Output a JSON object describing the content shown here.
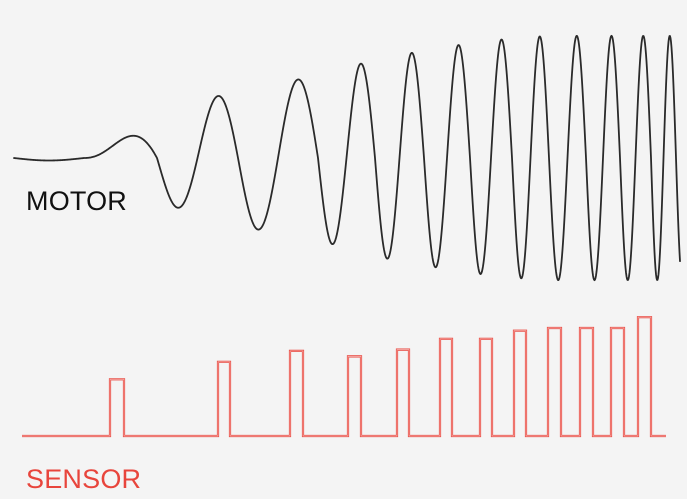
{
  "motor": {
    "label": "MOTOR",
    "color": "#2a2a2a",
    "waveform": "sine-chirp"
  },
  "sensor": {
    "label": "SENSOR",
    "color": "#e8453c",
    "waveform": "pulse-train",
    "pulses": [
      {
        "level": 0.42
      },
      {
        "level": 0.55
      },
      {
        "level": 0.63
      },
      {
        "level": 0.59
      },
      {
        "level": 0.64
      },
      {
        "level": 0.72
      },
      {
        "level": 0.72
      },
      {
        "level": 0.78
      },
      {
        "level": 0.8
      },
      {
        "level": 0.8
      },
      {
        "level": 0.8
      },
      {
        "level": 0.88
      }
    ]
  }
}
